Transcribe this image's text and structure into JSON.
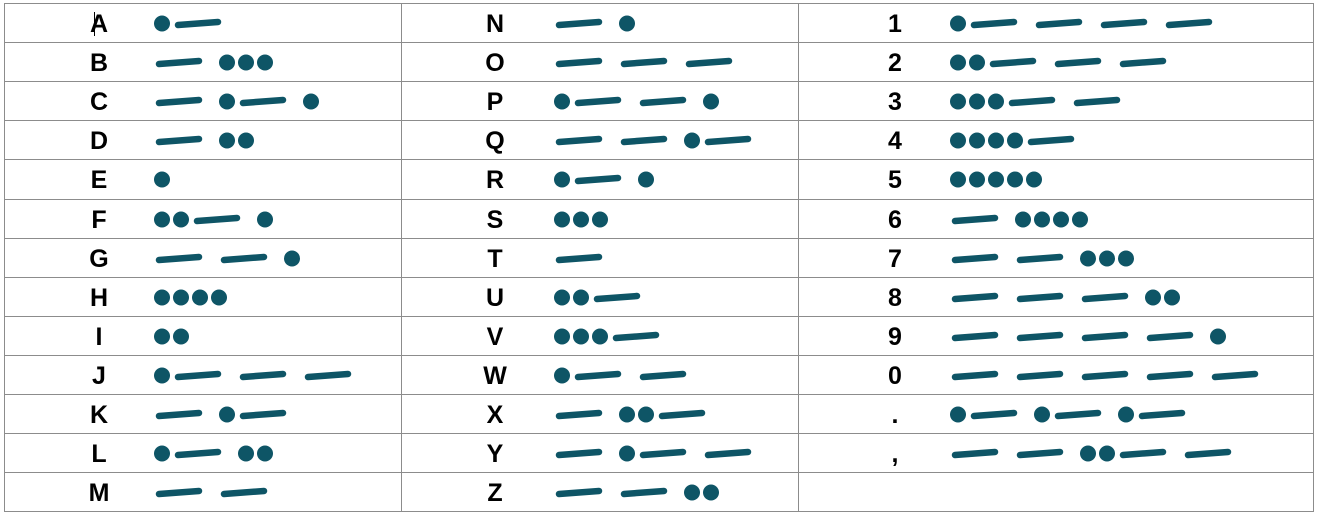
{
  "colors": {
    "symbol": "#0e5566",
    "grid": "#8c8c8c",
    "text": "#000000"
  },
  "columns": [
    {
      "rows": [
        {
          "char": "A",
          "code": ".-"
        },
        {
          "char": "B",
          "code": "-..."
        },
        {
          "char": "C",
          "code": "-.-."
        },
        {
          "char": "D",
          "code": "-.."
        },
        {
          "char": "E",
          "code": "."
        },
        {
          "char": "F",
          "code": "..-."
        },
        {
          "char": "G",
          "code": "--."
        },
        {
          "char": "H",
          "code": "...."
        },
        {
          "char": "I",
          "code": ".."
        },
        {
          "char": "J",
          "code": ".---"
        },
        {
          "char": "K",
          "code": "-.-"
        },
        {
          "char": "L",
          "code": ".-.."
        },
        {
          "char": "M",
          "code": "--"
        }
      ]
    },
    {
      "rows": [
        {
          "char": "N",
          "code": "-."
        },
        {
          "char": "O",
          "code": "---"
        },
        {
          "char": "P",
          "code": ".--."
        },
        {
          "char": "Q",
          "code": "--.-"
        },
        {
          "char": "R",
          "code": ".-."
        },
        {
          "char": "S",
          "code": "..."
        },
        {
          "char": "T",
          "code": "-"
        },
        {
          "char": "U",
          "code": "..-"
        },
        {
          "char": "V",
          "code": "...-"
        },
        {
          "char": "W",
          "code": ".--"
        },
        {
          "char": "X",
          "code": "-..-"
        },
        {
          "char": "Y",
          "code": "-.--"
        },
        {
          "char": "Z",
          "code": "--.."
        }
      ]
    },
    {
      "rows": [
        {
          "char": "1",
          "code": ".----"
        },
        {
          "char": "2",
          "code": "..---"
        },
        {
          "char": "3",
          "code": "...--"
        },
        {
          "char": "4",
          "code": "....-"
        },
        {
          "char": "5",
          "code": "....."
        },
        {
          "char": "6",
          "code": "-...."
        },
        {
          "char": "7",
          "code": "--..."
        },
        {
          "char": "8",
          "code": "---.."
        },
        {
          "char": "9",
          "code": "----."
        },
        {
          "char": "0",
          "code": "-----"
        },
        {
          "char": ".",
          "code": ".-.-.-"
        },
        {
          "char": ",",
          "code": "--..--"
        },
        {
          "char": "",
          "code": ""
        }
      ]
    }
  ]
}
